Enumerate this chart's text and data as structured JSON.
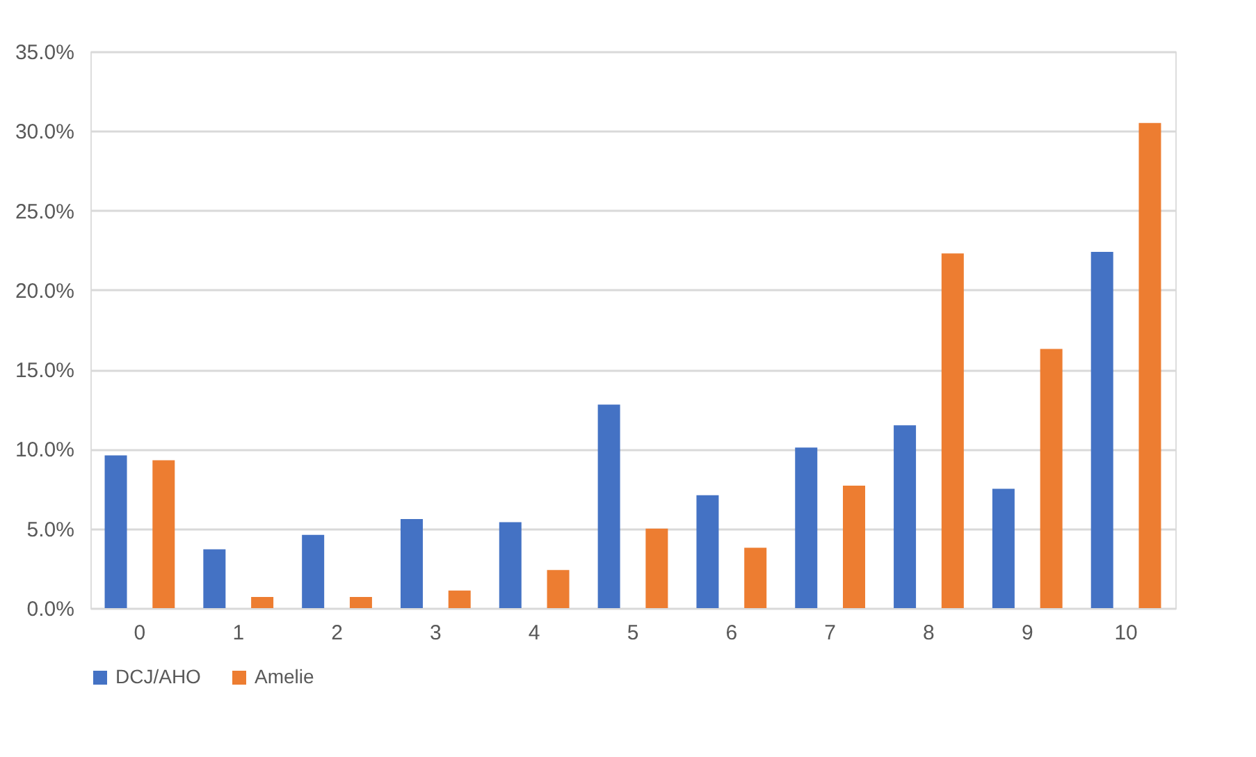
{
  "chart_data": {
    "type": "bar",
    "categories": [
      "0",
      "1",
      "2",
      "3",
      "4",
      "5",
      "6",
      "7",
      "8",
      "9",
      "10"
    ],
    "series": [
      {
        "name": "DCJ/AHO",
        "color": "#4472c4",
        "values": [
          9.6,
          3.7,
          4.6,
          5.6,
          5.4,
          12.8,
          7.1,
          10.1,
          11.5,
          7.5,
          22.4
        ]
      },
      {
        "name": "Amelie",
        "color": "#ed7d31",
        "values": [
          9.3,
          0.7,
          0.7,
          1.1,
          2.4,
          5.0,
          3.8,
          7.7,
          22.3,
          16.3,
          30.5
        ]
      }
    ],
    "ylim": [
      0,
      35
    ],
    "yticks": [
      {
        "value": 0,
        "label": "0.0%"
      },
      {
        "value": 5,
        "label": "5.0%"
      },
      {
        "value": 10,
        "label": "10.0%"
      },
      {
        "value": 15,
        "label": "15.0%"
      },
      {
        "value": 20,
        "label": "20.0%"
      },
      {
        "value": 25,
        "label": "25.0%"
      },
      {
        "value": 30,
        "label": "30.0%"
      },
      {
        "value": 35,
        "label": "35.0%"
      }
    ],
    "grid": "y",
    "legend": "bottom"
  }
}
